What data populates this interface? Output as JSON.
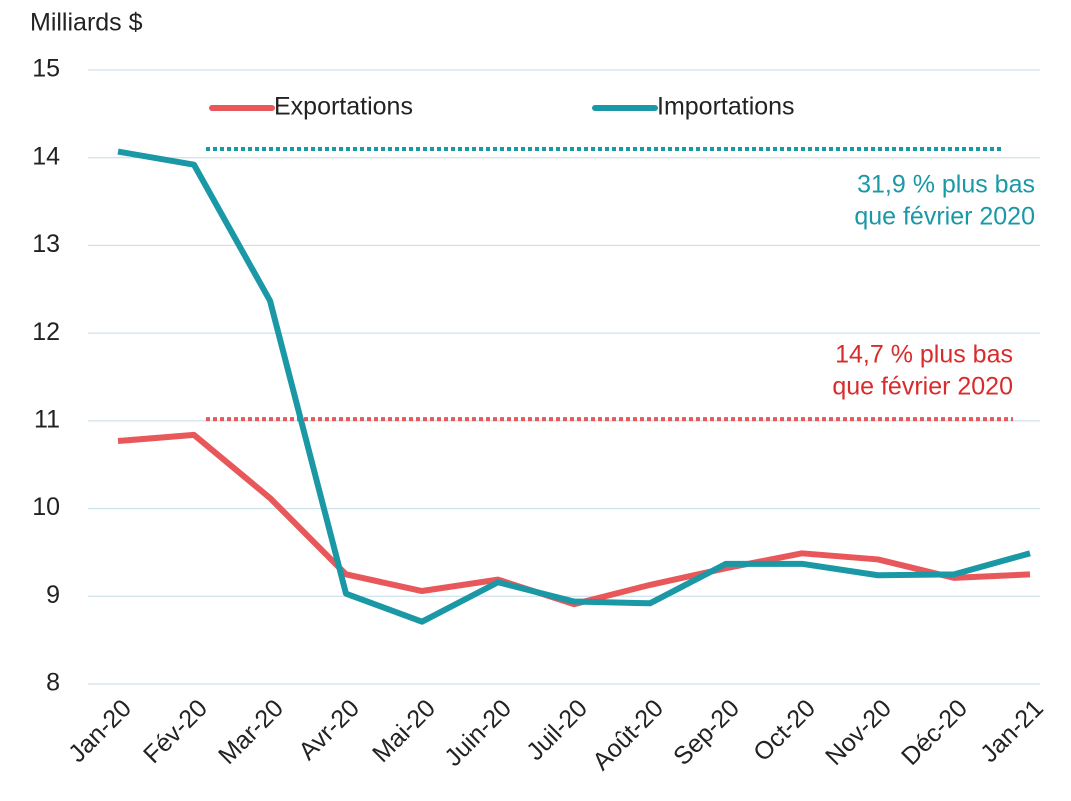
{
  "chart_data": {
    "type": "line",
    "y_axis_label": "Milliards $",
    "categories": [
      "Jan-20",
      "Fév-20",
      "Mar-20",
      "Avr-20",
      "Mai-20",
      "Juin-20",
      "Juil-20",
      "Août-20",
      "Sep-20",
      "Oct-20",
      "Nov-20",
      "Déc-20",
      "Jan-21"
    ],
    "series": [
      {
        "name": "Exportations",
        "color": "#e8585a",
        "values": [
          10.77,
          10.84,
          10.12,
          9.25,
          9.06,
          9.19,
          8.91,
          9.13,
          9.32,
          9.49,
          9.42,
          9.21,
          9.25
        ]
      },
      {
        "name": "Importations",
        "color": "#1a98a6",
        "values": [
          14.07,
          13.92,
          12.37,
          9.03,
          8.71,
          9.16,
          8.94,
          8.92,
          9.37,
          9.37,
          9.24,
          9.25,
          9.49
        ]
      }
    ],
    "reference_lines": [
      {
        "value": 14.1,
        "color": "#1a98a6"
      },
      {
        "value": 11.02,
        "color": "#e8585a"
      }
    ],
    "annotations": [
      {
        "lines": [
          "31,9 % plus bas",
          "que février 2020"
        ],
        "color": "#1a98a6"
      },
      {
        "lines": [
          "14,7 % plus bas",
          "que février 2020"
        ],
        "color": "#d92b2b"
      }
    ],
    "ylim": [
      8,
      15
    ],
    "yticks": [
      8,
      9,
      10,
      11,
      12,
      13,
      14,
      15
    ],
    "grid": true
  }
}
